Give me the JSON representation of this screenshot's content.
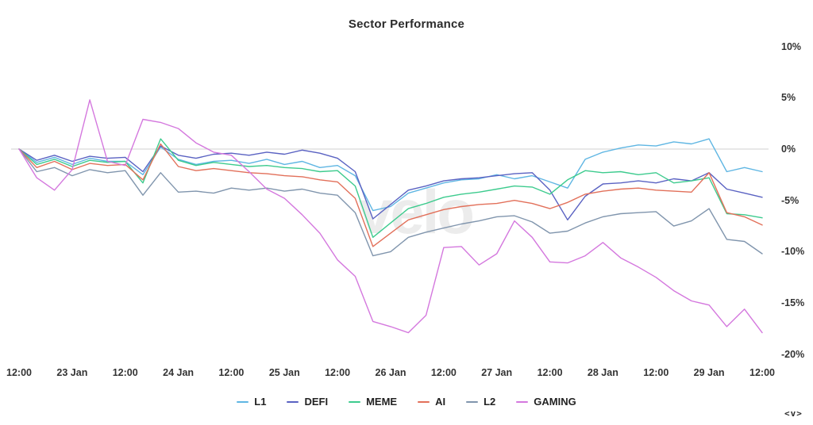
{
  "title": "Sector Performance",
  "watermark": "velo",
  "corner_glyph": "<v>",
  "chart_data": {
    "type": "line",
    "title": "Sector Performance",
    "x_tick_labels": [
      "12:00",
      "23 Jan",
      "12:00",
      "24 Jan",
      "12:00",
      "25 Jan",
      "12:00",
      "26 Jan",
      "12:00",
      "27 Jan",
      "12:00",
      "28 Jan",
      "12:00",
      "29 Jan",
      "12:00"
    ],
    "y_tick_labels": [
      "10%",
      "5%",
      "0%",
      "-5%",
      "-10%",
      "-15%",
      "-20%"
    ],
    "y_tick_values_pct": [
      10,
      5,
      0,
      -5,
      -10,
      -15,
      -20
    ],
    "ylim_pct": [
      -21.5,
      11.2
    ],
    "sample_interval_hours": 4,
    "points_per_x_label": 3,
    "grid": "zero-line-only",
    "zero_line_color": "#d9d9d9",
    "legend_position": "bottom",
    "series": [
      {
        "name": "L1",
        "color": "#5fb6e3",
        "values": [
          0,
          -1.3,
          -0.8,
          -1.5,
          -0.9,
          -1.2,
          -1.2,
          -2.5,
          0.2,
          -1.0,
          -1.5,
          -1.2,
          -1.1,
          -1.4,
          -1.0,
          -1.5,
          -1.2,
          -1.8,
          -1.6,
          -2.6,
          -6.0,
          -5.6,
          -4.3,
          -3.8,
          -3.3,
          -3.0,
          -2.9,
          -2.5,
          -2.9,
          -2.6,
          -3.2,
          -3.8,
          -1.0,
          -0.3,
          0.1,
          0.4,
          0.3,
          0.7,
          0.5,
          1.0,
          -2.2,
          -1.8,
          -2.2
        ]
      },
      {
        "name": "DEFI",
        "color": "#5a62c2",
        "values": [
          0,
          -1.1,
          -0.6,
          -1.2,
          -0.7,
          -0.9,
          -0.8,
          -2.2,
          0.3,
          -0.6,
          -0.9,
          -0.5,
          -0.4,
          -0.6,
          -0.3,
          -0.5,
          -0.1,
          -0.4,
          -0.9,
          -2.2,
          -6.8,
          -5.4,
          -4.0,
          -3.6,
          -3.1,
          -2.9,
          -2.8,
          -2.6,
          -2.4,
          -2.3,
          -4.0,
          -6.9,
          -4.6,
          -3.4,
          -3.3,
          -3.1,
          -3.3,
          -2.9,
          -3.1,
          -2.3,
          -3.9,
          -4.3,
          -4.7
        ]
      },
      {
        "name": "MEME",
        "color": "#3dcb8e",
        "values": [
          0,
          -1.5,
          -1.0,
          -1.7,
          -1.1,
          -1.3,
          -1.2,
          -3.3,
          1.0,
          -1.1,
          -1.6,
          -1.3,
          -1.5,
          -1.7,
          -1.6,
          -1.8,
          -1.9,
          -2.2,
          -2.1,
          -3.6,
          -8.6,
          -7.2,
          -5.8,
          -5.3,
          -4.7,
          -4.4,
          -4.2,
          -3.9,
          -3.6,
          -3.7,
          -4.4,
          -3.0,
          -2.1,
          -2.3,
          -2.2,
          -2.5,
          -2.3,
          -3.3,
          -3.1,
          -2.8,
          -6.3,
          -6.4,
          -6.7
        ]
      },
      {
        "name": "AI",
        "color": "#e2705a",
        "values": [
          0,
          -1.8,
          -1.2,
          -2.0,
          -1.4,
          -1.6,
          -1.5,
          -3.0,
          0.5,
          -1.7,
          -2.1,
          -1.9,
          -2.1,
          -2.3,
          -2.4,
          -2.6,
          -2.7,
          -3.0,
          -3.2,
          -4.8,
          -9.5,
          -8.2,
          -6.9,
          -6.4,
          -5.9,
          -5.6,
          -5.4,
          -5.3,
          -5.0,
          -5.3,
          -5.8,
          -5.2,
          -4.4,
          -4.1,
          -3.9,
          -3.8,
          -4.0,
          -4.1,
          -4.2,
          -2.3,
          -6.2,
          -6.6,
          -7.4
        ]
      },
      {
        "name": "L2",
        "color": "#8095ad",
        "values": [
          0,
          -2.2,
          -1.8,
          -2.6,
          -2.0,
          -2.3,
          -2.1,
          -4.5,
          -2.3,
          -4.2,
          -4.1,
          -4.3,
          -3.8,
          -4.0,
          -3.8,
          -4.1,
          -3.9,
          -4.3,
          -4.5,
          -6.2,
          -10.4,
          -10.0,
          -8.6,
          -8.1,
          -7.7,
          -7.3,
          -7.0,
          -6.6,
          -6.5,
          -7.1,
          -8.2,
          -8.0,
          -7.2,
          -6.6,
          -6.3,
          -6.2,
          -6.1,
          -7.5,
          -7.0,
          -5.8,
          -8.8,
          -9.0,
          -10.2
        ]
      },
      {
        "name": "GAMING",
        "color": "#d478de",
        "values": [
          0,
          -2.8,
          -4.0,
          -2.0,
          4.8,
          -1.2,
          -1.6,
          2.9,
          2.6,
          2.0,
          0.6,
          -0.3,
          -0.6,
          -2.2,
          -3.9,
          -4.8,
          -6.4,
          -8.2,
          -10.8,
          -12.4,
          -16.8,
          -17.3,
          -17.9,
          -16.2,
          -9.6,
          -9.5,
          -11.3,
          -10.2,
          -7.0,
          -8.6,
          -11.0,
          -11.1,
          -10.4,
          -9.1,
          -10.6,
          -11.5,
          -12.5,
          -13.8,
          -14.8,
          -15.2,
          -17.3,
          -15.6,
          -17.9
        ]
      }
    ]
  },
  "layout_hint": {
    "note": "values are percent change; zero line drawn across plot"
  }
}
